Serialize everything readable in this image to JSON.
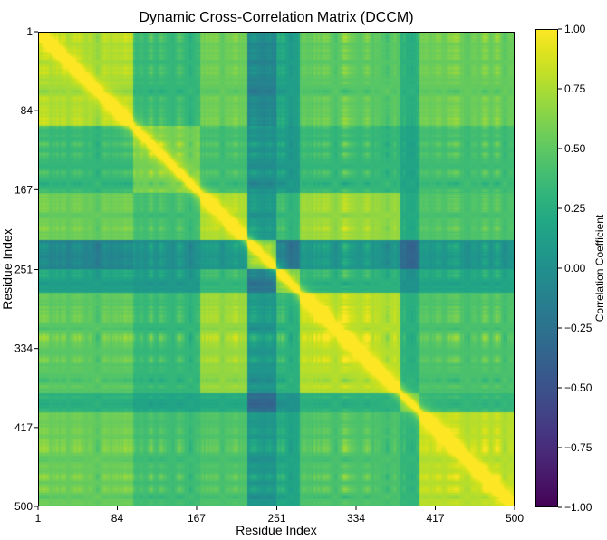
{
  "chart_data": {
    "type": "heatmap",
    "title": "Dynamic Cross-Correlation Matrix (DCCM)",
    "xlabel": "Residue Index",
    "ylabel": "Residue Index",
    "n_residues": 500,
    "xlim": [
      1,
      500
    ],
    "ylim": [
      1,
      500
    ],
    "x_ticks": [
      1,
      84,
      167,
      251,
      334,
      417,
      500
    ],
    "y_ticks": [
      1,
      84,
      167,
      251,
      334,
      417,
      500
    ],
    "colormap": "viridis",
    "colorbar": {
      "label": "Correlation Coefficient",
      "range": [
        -1.0,
        1.0
      ],
      "ticks": [
        "1.00",
        "0.75",
        "0.50",
        "0.25",
        "0.00",
        "−0.25",
        "−0.50",
        "−0.75",
        "−1.00"
      ],
      "tick_values": [
        1.0,
        0.75,
        0.5,
        0.25,
        0.0,
        -0.25,
        -0.5,
        -0.75,
        -1.0
      ]
    },
    "domains": [
      {
        "start": 1,
        "end": 100
      },
      {
        "start": 101,
        "end": 170
      },
      {
        "start": 171,
        "end": 220
      },
      {
        "start": 221,
        "end": 250
      },
      {
        "start": 251,
        "end": 275
      },
      {
        "start": 276,
        "end": 380
      },
      {
        "start": 381,
        "end": 400
      },
      {
        "start": 401,
        "end": 500
      }
    ],
    "diagonal_value": 1.0,
    "grid": false
  }
}
